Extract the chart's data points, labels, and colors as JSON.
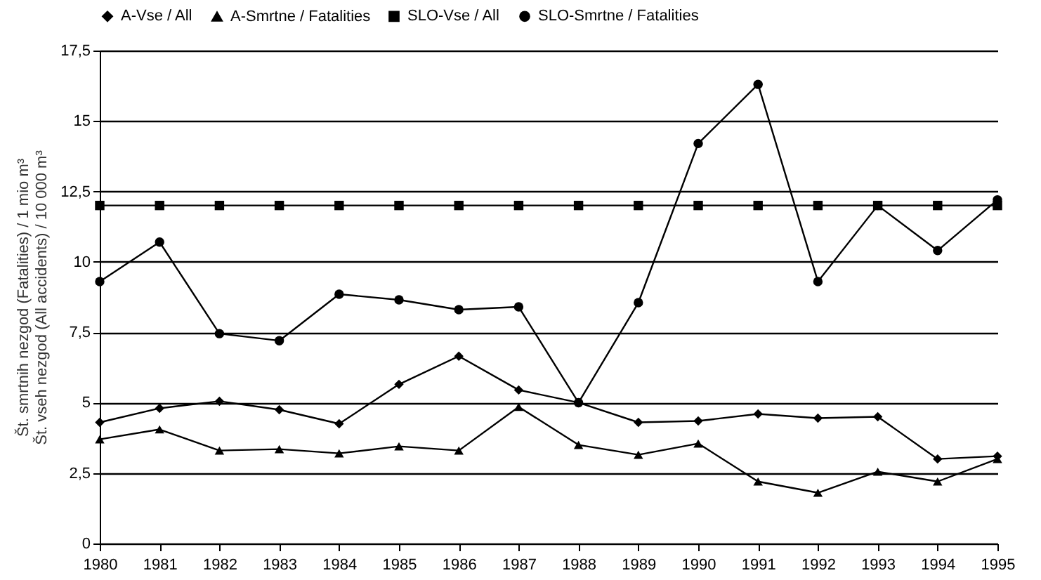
{
  "chart_data": {
    "type": "line",
    "ylabel": "Št. smrtnih nezgod (Fatalities) / 1 mio m³\nŠt. vseh nezgod (All accidents) / 10 000 m³",
    "categories": [
      "1980",
      "1981",
      "1982",
      "1983",
      "1984",
      "1985",
      "1986",
      "1987",
      "1988",
      "1989",
      "1990",
      "1991",
      "1992",
      "1993",
      "1994",
      "1995"
    ],
    "series": [
      {
        "name": "A-Vse / All",
        "color": "#000000",
        "marker": "diamond",
        "values": [
          4.3,
          4.8,
          5.05,
          4.75,
          4.25,
          5.65,
          6.65,
          5.45,
          5.0,
          4.3,
          4.35,
          4.6,
          4.45,
          4.5,
          3.0,
          3.1
        ]
      },
      {
        "name": "A-Smrtne / Fatalities",
        "color": "#000000",
        "marker": "triangle",
        "values": [
          3.7,
          4.05,
          3.3,
          3.35,
          3.2,
          3.45,
          3.3,
          4.85,
          3.5,
          3.15,
          3.55,
          2.2,
          1.8,
          2.55,
          2.2,
          3.0
        ]
      },
      {
        "name": "SLO-Vse / All",
        "color": "#000000",
        "marker": "square",
        "values": [
          12,
          12,
          12,
          12,
          12,
          12,
          12,
          12,
          12,
          12,
          12,
          12,
          12,
          12,
          12,
          12
        ]
      },
      {
        "name": "SLO-Smrtne / Fatalities",
        "color": "#000000",
        "marker": "circle",
        "values": [
          9.3,
          10.7,
          7.45,
          7.2,
          8.85,
          8.65,
          8.3,
          8.4,
          5.0,
          8.55,
          14.2,
          16.3,
          9.3,
          12.0,
          10.4,
          12.2
        ]
      }
    ],
    "ylim": [
      0,
      17.5
    ],
    "yticks": [
      0,
      {
        "value": 2.5,
        "label": "2,5"
      },
      5,
      {
        "value": 7.5,
        "label": "7,5"
      },
      10,
      {
        "value": 12.5,
        "label": "12,5"
      },
      15,
      {
        "value": 17.5,
        "label": "17,5"
      }
    ],
    "grid": "y",
    "legend": "top",
    "line_style": "solid"
  }
}
